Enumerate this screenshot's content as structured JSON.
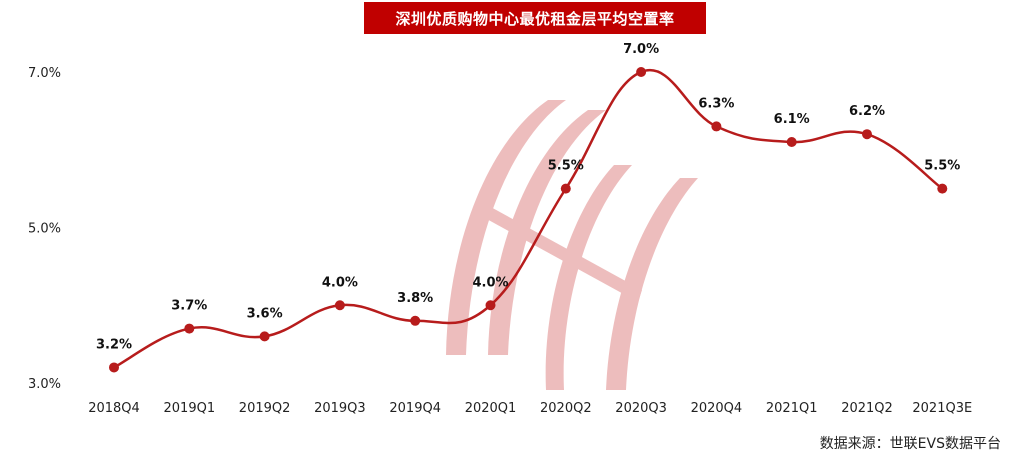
{
  "chart_data": {
    "type": "line",
    "title": "深圳优质购物中心最优租金层平均空置率",
    "categories": [
      "2018Q4",
      "2019Q1",
      "2019Q2",
      "2019Q3",
      "2019Q4",
      "2020Q1",
      "2020Q2",
      "2020Q3",
      "2020Q4",
      "2021Q1",
      "2021Q2",
      "2021Q3E"
    ],
    "series": [
      {
        "values": [
          3.2,
          3.7,
          3.6,
          4.0,
          3.8,
          4.0,
          5.5,
          7.0,
          6.3,
          6.1,
          6.2,
          5.5
        ],
        "labels": [
          "3.2%",
          "3.7%",
          "3.6%",
          "4.0%",
          "3.8%",
          "4.0%",
          "5.5%",
          "7.0%",
          "6.3%",
          "6.1%",
          "6.2%",
          "5.5%"
        ]
      }
    ],
    "yticks": [
      "3.0%",
      "5.0%",
      "7.0%"
    ],
    "ytick_values": [
      3.0,
      5.0,
      7.0
    ],
    "ylim": [
      3.0,
      7.0
    ],
    "line_color": "#b71c1c",
    "grid": false
  },
  "source": "数据来源：世联EVS数据平台"
}
